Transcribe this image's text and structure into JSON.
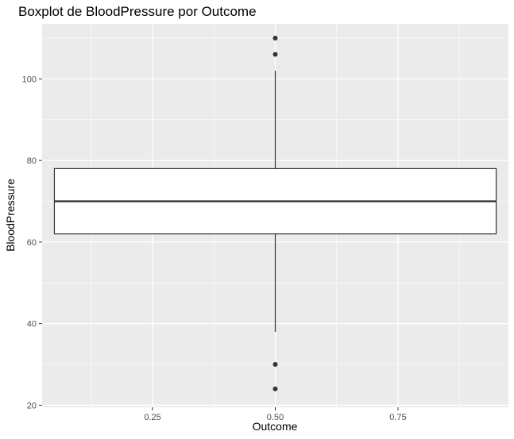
{
  "chart_data": {
    "type": "boxplot",
    "title": "Boxplot de BloodPressure por Outcome",
    "xlabel": "Outcome",
    "ylabel": "BloodPressure",
    "xlim": [
      0.025,
      0.975
    ],
    "ylim": [
      19.5,
      113.5
    ],
    "x_ticks": [
      0.25,
      0.5,
      0.75
    ],
    "x_tick_labels": [
      "0.25",
      "0.50",
      "0.75"
    ],
    "y_ticks": [
      20,
      40,
      60,
      80,
      100
    ],
    "y_tick_labels": [
      "20",
      "40",
      "60",
      "80",
      "100"
    ],
    "grid": true,
    "legend": "none",
    "box": {
      "x_center": 0.5,
      "x_min": 0.05,
      "x_max": 0.95,
      "q1": 62,
      "median": 70,
      "q3": 78,
      "whisker_low": 38,
      "whisker_high": 102
    },
    "outliers": [
      110,
      106,
      30,
      24
    ],
    "colors": {
      "panel_background": "#EBEBEB",
      "grid": "#FFFFFF",
      "box_fill": "#FFFFFF",
      "box_line": "#333333",
      "outlier": "#333333"
    }
  }
}
